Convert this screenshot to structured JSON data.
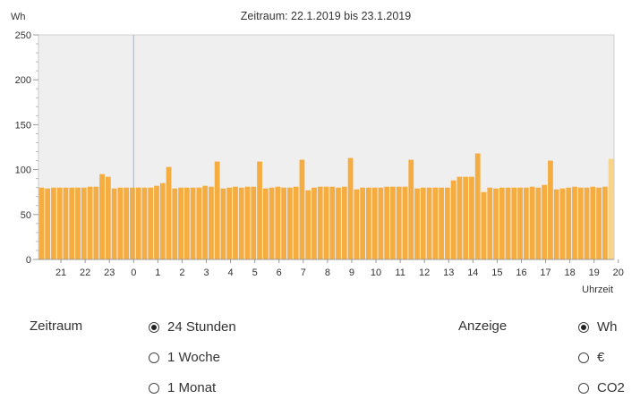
{
  "chart_data": {
    "type": "bar",
    "title": "Zeitraum: 22.1.2019 bis 23.1.2019",
    "ylabel": "Wh",
    "xlabel": "Uhrzeit",
    "ylim": [
      0,
      250
    ],
    "yticks": [
      0,
      50,
      100,
      150,
      200,
      250
    ],
    "xtick_labels": [
      "21",
      "22",
      "23",
      "0",
      "1",
      "2",
      "3",
      "4",
      "5",
      "6",
      "7",
      "8",
      "9",
      "10",
      "11",
      "12",
      "13",
      "14",
      "15",
      "16",
      "17",
      "18",
      "19",
      "20"
    ],
    "grid": false,
    "bar_color": "#f5ad42",
    "highlight_color": "#f8d48a",
    "background_color": "#efefef",
    "divider_color": "#8fb8dc",
    "values": [
      80,
      79,
      80,
      80,
      80,
      80,
      80,
      80,
      81,
      81,
      95,
      92,
      79,
      80,
      80,
      80,
      80,
      80,
      80,
      82,
      85,
      103,
      79,
      80,
      80,
      80,
      80,
      82,
      81,
      109,
      79,
      80,
      81,
      80,
      81,
      81,
      109,
      79,
      80,
      81,
      80,
      80,
      81,
      111,
      77,
      80,
      81,
      81,
      81,
      80,
      81,
      113,
      78,
      80,
      80,
      80,
      80,
      81,
      81,
      81,
      81,
      111,
      79,
      80,
      80,
      80,
      80,
      80,
      88,
      92,
      92,
      92,
      118,
      75,
      80,
      79,
      80,
      80,
      80,
      80,
      80,
      81,
      80,
      83,
      110,
      78,
      79,
      80,
      81,
      80,
      80,
      81,
      80,
      81,
      112
    ]
  },
  "controls": {
    "zeitraum_label": "Zeitraum",
    "zeitraum_options": [
      "24 Stunden",
      "1 Woche",
      "1 Monat"
    ],
    "zeitraum_selected": "24 Stunden",
    "anzeige_label": "Anzeige",
    "anzeige_options": [
      "Wh",
      "€",
      "CO2"
    ],
    "anzeige_selected": "Wh"
  }
}
